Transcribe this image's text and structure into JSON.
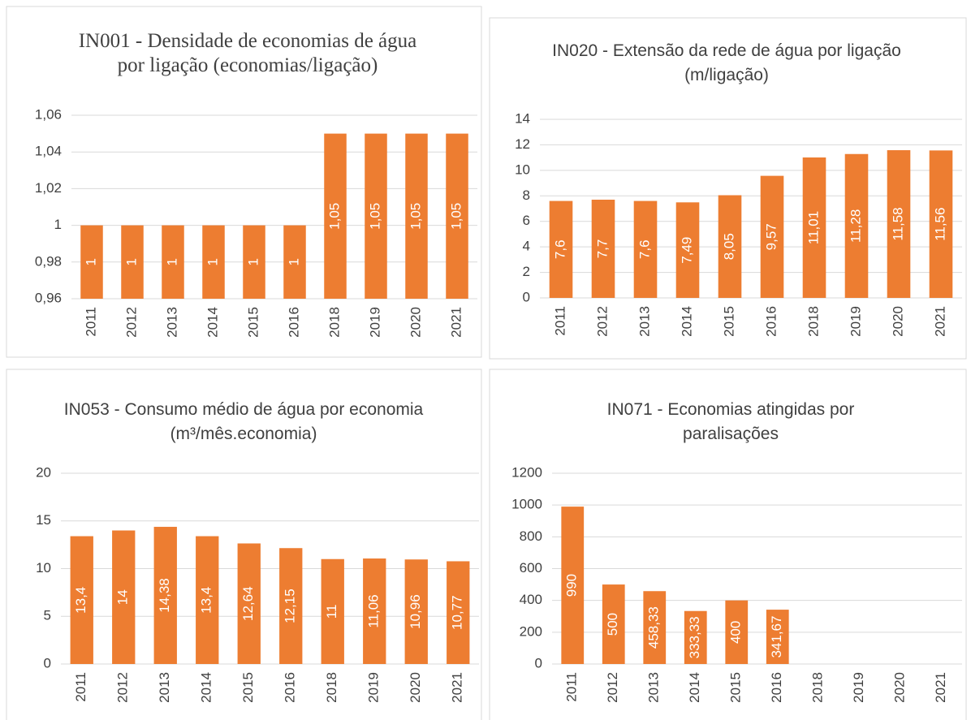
{
  "chart_data": [
    {
      "type": "bar",
      "title": "IN001 - Densidade de economias de água por ligação (economias/ligação)",
      "categories": [
        "2011",
        "2012",
        "2013",
        "2014",
        "2015",
        "2016",
        "2018",
        "2019",
        "2020",
        "2021"
      ],
      "values": [
        1,
        1,
        1,
        1,
        1,
        1,
        1.05,
        1.05,
        1.05,
        1.05
      ],
      "value_labels": [
        "1",
        "1",
        "1",
        "1",
        "1",
        "1",
        "1,05",
        "1,05",
        "1,05",
        "1,05"
      ],
      "color": "#ed7d31",
      "ylim": [
        0.96,
        1.06
      ],
      "yticks": [
        {
          "value": 0.96,
          "label": "0,96"
        },
        {
          "value": 0.98,
          "label": "0,98"
        },
        1,
        {
          "value": 1.02,
          "label": "1,02"
        },
        {
          "value": 1.04,
          "label": "1,04"
        },
        {
          "value": 1.06,
          "label": "1,06"
        }
      ],
      "grid": true
    },
    {
      "type": "bar",
      "title": "IN020 - Extensão da rede de água por ligação (m/ligação)",
      "categories": [
        "2011",
        "2012",
        "2013",
        "2014",
        "2015",
        "2016",
        "2018",
        "2019",
        "2020",
        "2021"
      ],
      "values": [
        7.6,
        7.7,
        7.6,
        7.49,
        8.05,
        9.57,
        11.01,
        11.28,
        11.58,
        11.56
      ],
      "value_labels": [
        "7,6",
        "7,7",
        "7,6",
        "7,49",
        "8,05",
        "9,57",
        "11,01",
        "11,28",
        "11,58",
        "11,56"
      ],
      "color": "#ed7d31",
      "ylim": [
        0,
        14
      ],
      "yticks": [
        0,
        2,
        4,
        6,
        8,
        10,
        12,
        14
      ],
      "grid": true
    },
    {
      "type": "bar",
      "title": "IN053 - Consumo médio de água por economia (m³/mês.economia)",
      "categories": [
        "2011",
        "2012",
        "2013",
        "2014",
        "2015",
        "2016",
        "2018",
        "2019",
        "2020",
        "2021"
      ],
      "values": [
        13.4,
        14,
        14.38,
        13.4,
        12.64,
        12.15,
        11,
        11.06,
        10.96,
        10.77
      ],
      "value_labels": [
        "13,4",
        "14",
        "14,38",
        "13,4",
        "12,64",
        "12,15",
        "11",
        "11,06",
        "10,96",
        "10,77"
      ],
      "color": "#ed7d31",
      "ylim": [
        0,
        20
      ],
      "yticks": [
        0,
        5,
        10,
        15,
        20
      ],
      "grid": true
    },
    {
      "type": "bar",
      "title": "IN071 - Economias atingidas por paralisações",
      "categories": [
        "2011",
        "2012",
        "2013",
        "2014",
        "2015",
        "2016",
        "2018",
        "2019",
        "2020",
        "2021"
      ],
      "values": [
        990,
        500,
        458.33,
        333.33,
        400,
        341.67,
        null,
        null,
        null,
        null
      ],
      "value_labels": [
        "990",
        "500",
        "458,33",
        "333,33",
        "400",
        "341,67",
        null,
        null,
        null,
        null
      ],
      "color": "#ed7d31",
      "ylim": [
        0,
        1200
      ],
      "yticks": [
        0,
        200,
        400,
        600,
        800,
        1000,
        1200
      ],
      "grid": true
    }
  ]
}
